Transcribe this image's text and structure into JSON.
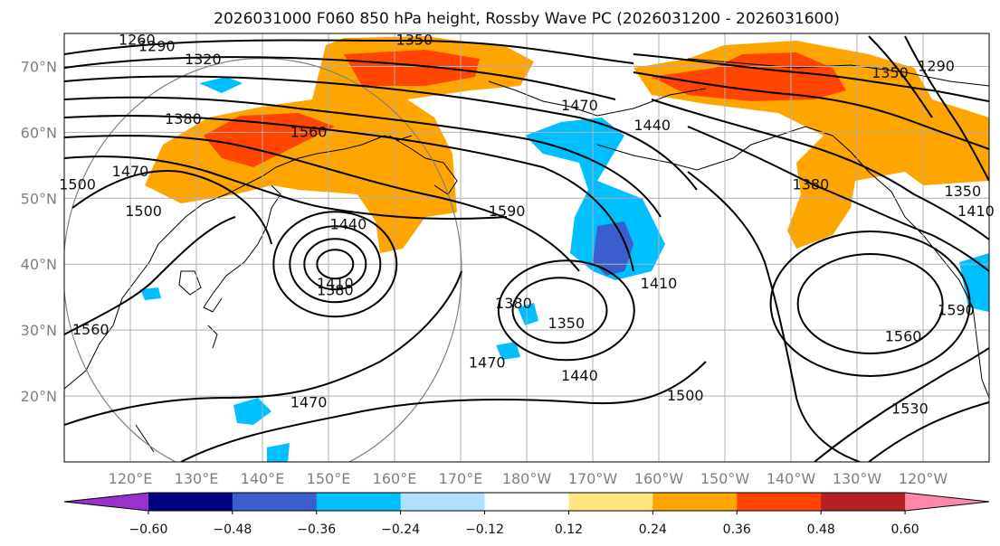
{
  "chart_data": {
    "type": "map-contour",
    "title": "2026031000 F060 850 hPa height, Rossby Wave PC (2026031200 - 2026031600)",
    "lon_range": [
      110,
      250
    ],
    "lat_range": [
      10,
      75
    ],
    "lat_ticks": [
      {
        "value": 20,
        "label": "20°N"
      },
      {
        "value": 30,
        "label": "30°N"
      },
      {
        "value": 40,
        "label": "40°N"
      },
      {
        "value": 50,
        "label": "50°N"
      },
      {
        "value": 60,
        "label": "60°N"
      },
      {
        "value": 70,
        "label": "70°N"
      }
    ],
    "lon_ticks": [
      {
        "value": 120,
        "label": "120°E"
      },
      {
        "value": 130,
        "label": "130°E"
      },
      {
        "value": 140,
        "label": "140°E"
      },
      {
        "value": 150,
        "label": "150°E"
      },
      {
        "value": 160,
        "label": "160°E"
      },
      {
        "value": 170,
        "label": "170°E"
      },
      {
        "value": 180,
        "label": "180°W"
      },
      {
        "value": 190,
        "label": "170°W"
      },
      {
        "value": 200,
        "label": "160°W"
      },
      {
        "value": 210,
        "label": "150°W"
      },
      {
        "value": 220,
        "label": "140°W"
      },
      {
        "value": 230,
        "label": "130°W"
      },
      {
        "value": 240,
        "label": "120°W"
      }
    ],
    "colorbar": {
      "boundaries": [
        -0.6,
        -0.48,
        -0.36,
        -0.24,
        -0.12,
        0.12,
        0.24,
        0.36,
        0.48,
        0.6
      ],
      "tick_labels": [
        "−0.60",
        "−0.48",
        "−0.36",
        "−0.24",
        "−0.12",
        "0.12",
        "0.24",
        "0.36",
        "0.48",
        "0.60"
      ],
      "colors": [
        "#9932cc",
        "#000080",
        "#3a5fcd",
        "#00bfff",
        "#b0e0ff",
        "#ffffff",
        "#ffe680",
        "#ffa500",
        "#ff4500",
        "#b22222",
        "#ff88aa"
      ],
      "extend": "both"
    },
    "height_contours": [
      {
        "label": "1260",
        "lon": 121,
        "lat": 74
      },
      {
        "label": "1290",
        "lon": 124,
        "lat": 73
      },
      {
        "label": "1320",
        "lon": 131,
        "lat": 71
      },
      {
        "label": "1350",
        "lon": 163,
        "lat": 74
      },
      {
        "label": "1380",
        "lon": 128,
        "lat": 62
      },
      {
        "label": "1470",
        "lon": 120,
        "lat": 54
      },
      {
        "label": "1500",
        "lon": 112,
        "lat": 52
      },
      {
        "label": "1500",
        "lon": 122,
        "lat": 48
      },
      {
        "label": "1560",
        "lon": 147,
        "lat": 60
      },
      {
        "label": "1440",
        "lon": 153,
        "lat": 46
      },
      {
        "label": "1410",
        "lon": 151,
        "lat": 37
      },
      {
        "label": "1380",
        "lon": 151,
        "lat": 36
      },
      {
        "label": "1560",
        "lon": 114,
        "lat": 30
      },
      {
        "label": "1470",
        "lon": 147,
        "lat": 19
      },
      {
        "label": "1590",
        "lon": 177,
        "lat": 48
      },
      {
        "label": "1470",
        "lon": 188,
        "lat": 64
      },
      {
        "label": "1440",
        "lon": 199,
        "lat": 61
      },
      {
        "label": "1410",
        "lon": 200,
        "lat": 37
      },
      {
        "label": "1380",
        "lon": 178,
        "lat": 34
      },
      {
        "label": "1350",
        "lon": 186,
        "lat": 31
      },
      {
        "label": "1470",
        "lon": 174,
        "lat": 25
      },
      {
        "label": "1440",
        "lon": 188,
        "lat": 23
      },
      {
        "label": "1500",
        "lon": 204,
        "lat": 20
      },
      {
        "label": "1380",
        "lon": 223,
        "lat": 52
      },
      {
        "label": "1350",
        "lon": 235,
        "lat": 69
      },
      {
        "label": "1290",
        "lon": 242,
        "lat": 70
      },
      {
        "label": "1560",
        "lon": 237,
        "lat": 29
      },
      {
        "label": "1530",
        "lon": 238,
        "lat": 18
      },
      {
        "label": "1590",
        "lon": 245,
        "lat": 33
      },
      {
        "label": "1410",
        "lon": 248,
        "lat": 48
      },
      {
        "label": "1350",
        "lon": 246,
        "lat": 51
      }
    ],
    "anomaly_regions": [
      {
        "name": "positive NE Asia / Siberia",
        "lon": [
          123,
          175
        ],
        "lat": [
          44,
          75
        ],
        "max_value": 0.48
      },
      {
        "name": "negative Bering / central Pacific",
        "lon": [
          183,
          200
        ],
        "lat": [
          36,
          64
        ],
        "min_value": -0.48
      },
      {
        "name": "positive Alaska / Canada",
        "lon": [
          200,
          250
        ],
        "lat": [
          42,
          72
        ],
        "max_value": 0.48
      },
      {
        "name": "negative off California",
        "lon": [
          243,
          250
        ],
        "lat": [
          33,
          39
        ],
        "min_value": -0.36
      }
    ]
  }
}
